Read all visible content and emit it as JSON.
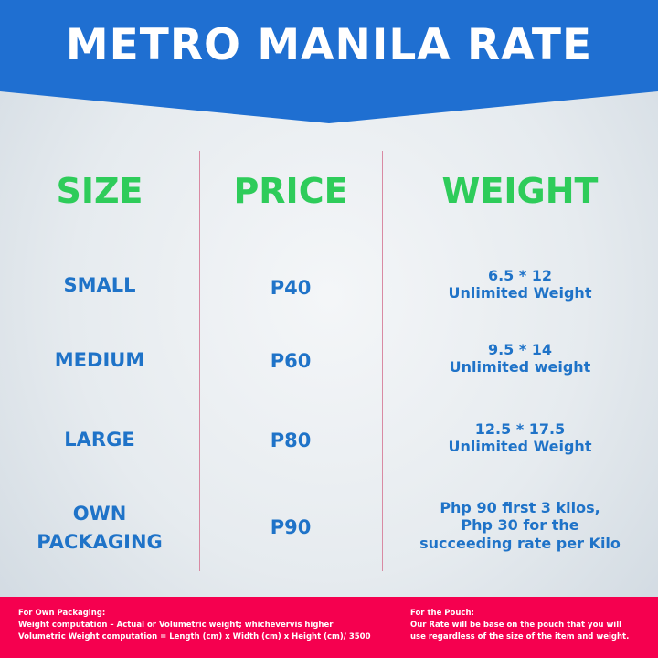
{
  "banner": {
    "title": "METRO MANILA RATE",
    "color": "#1f6fd1"
  },
  "table": {
    "headers": {
      "size": "SIZE",
      "price": "PRICE",
      "weight": "WEIGHT"
    },
    "rows": [
      {
        "size": "SMALL",
        "price": "P40",
        "weight": [
          "6.5 * 12",
          "Unlimited Weight"
        ]
      },
      {
        "size": "MEDIUM",
        "price": "P60",
        "weight": [
          "9.5 * 14",
          "Unlimited weight"
        ]
      },
      {
        "size": "LARGE",
        "price": "P80",
        "weight": [
          "12.5 * 17.5",
          "Unlimited Weight"
        ]
      },
      {
        "size": [
          "OWN",
          "PACKAGING"
        ],
        "price": "P90",
        "weight": [
          "Php 90 first 3 kilos,",
          "Php 30 for the",
          "succeeding rate per Kilo"
        ]
      }
    ]
  },
  "footer": {
    "left": [
      "For Own Packaging:",
      "Weight computation – Actual or Volumetric weight; whichevervis higher",
      "Volumetric Weight computation = Length (cm) x Width (cm) x Height (cm)/ 3500"
    ],
    "right": [
      "For the Pouch:",
      "Our Rate will be base on the pouch that you will",
      "use regardless of the size of the item and weight."
    ]
  },
  "colors": {
    "accent": "#2ecc5a",
    "text": "#1f73c8",
    "footer": "#f5004f"
  }
}
